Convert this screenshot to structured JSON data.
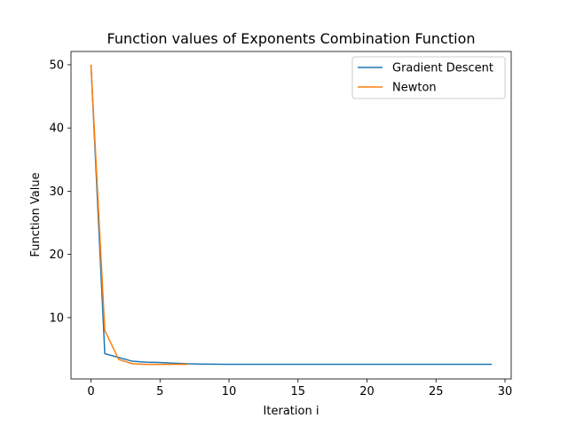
{
  "chart_data": {
    "type": "line",
    "title": "Function values of Exponents Combination Function",
    "xlabel": "Iteration i",
    "ylabel": "Function Value",
    "xlim": [
      -1.45,
      30.45
    ],
    "ylim": [
      0.3,
      52.1
    ],
    "xticks": [
      0,
      5,
      10,
      15,
      20,
      25,
      30
    ],
    "yticks": [
      10,
      20,
      30,
      40,
      50
    ],
    "grid": false,
    "legend_position": "top-right",
    "series": [
      {
        "name": "Gradient Descent",
        "color": "#1f77b4",
        "x": [
          0,
          1,
          2,
          3,
          4,
          5,
          6,
          7,
          8,
          9,
          10,
          11,
          12,
          13,
          14,
          15,
          16,
          17,
          18,
          19,
          20,
          21,
          22,
          23,
          24,
          25,
          26,
          27,
          28,
          29
        ],
        "y": [
          49.9,
          4.3,
          3.7,
          3.1,
          2.95,
          2.9,
          2.8,
          2.7,
          2.65,
          2.63,
          2.62,
          2.62,
          2.62,
          2.62,
          2.62,
          2.62,
          2.62,
          2.62,
          2.62,
          2.62,
          2.62,
          2.62,
          2.62,
          2.62,
          2.62,
          2.62,
          2.62,
          2.62,
          2.62,
          2.62
        ]
      },
      {
        "name": "Newton",
        "color": "#ff7f0e",
        "x": [
          0,
          1,
          2,
          3,
          4,
          5,
          6,
          7
        ],
        "y": [
          49.9,
          8.0,
          3.4,
          2.7,
          2.6,
          2.6,
          2.62,
          2.62
        ]
      }
    ]
  }
}
